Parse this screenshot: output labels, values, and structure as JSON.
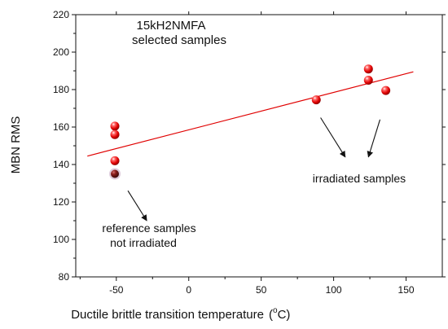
{
  "chart_data": {
    "type": "scatter",
    "title": "15kH2NMFA",
    "subtitle": "selected samples",
    "xlabel": "Ductile brittle transition temperature",
    "xlabel_unit_prefix": "(",
    "xlabel_unit_sup": "o",
    "xlabel_unit_main": "C)",
    "ylabel": "MBN  RMS",
    "xlim": [
      -78,
      175
    ],
    "ylim": [
      80,
      220
    ],
    "xticks": [
      -50,
      0,
      50,
      100,
      150
    ],
    "yticks": [
      80,
      100,
      120,
      140,
      160,
      180,
      200,
      220
    ],
    "grid": false,
    "series": [
      {
        "points": [
          {
            "x": -51,
            "y": 160.5,
            "highlight": false
          },
          {
            "x": -51,
            "y": 156,
            "highlight": false
          },
          {
            "x": -51,
            "y": 142,
            "highlight": false
          },
          {
            "x": -51,
            "y": 135,
            "highlight": true
          },
          {
            "x": 88,
            "y": 174.5,
            "highlight": false
          },
          {
            "x": 124,
            "y": 191,
            "highlight": false
          },
          {
            "x": 124,
            "y": 185,
            "highlight": false
          },
          {
            "x": 136,
            "y": 179.5,
            "highlight": false
          }
        ]
      }
    ],
    "fit_line": {
      "x_start": -70,
      "y_start": 144.5,
      "x_end": 155,
      "y_end": 189.5
    },
    "annotations": [
      {
        "lines": [
          "irradiated samples"
        ],
        "arrows": [
          {
            "from": [
              91,
              165
            ],
            "to": [
              108,
              144
            ]
          },
          {
            "from": [
              132,
              164
            ],
            "to": [
              124,
              144
            ]
          }
        ]
      },
      {
        "lines": [
          "reference samples",
          "not irradiated"
        ],
        "arrows": [
          {
            "from": [
              -42,
              126
            ],
            "to": [
              -29,
              110
            ]
          }
        ]
      }
    ],
    "colors": {
      "marker": "#e00000",
      "marker_highlight": "#7a1010",
      "fit_line": "#e00000",
      "axis": "#111111"
    }
  }
}
